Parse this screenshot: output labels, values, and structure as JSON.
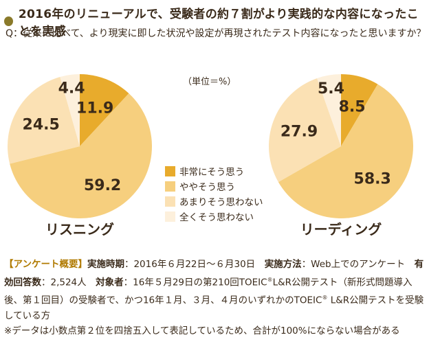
{
  "title": "2016年のリニューアルで、受験者の約７割がより実践的な内容になったことを実感",
  "question": "Q：従来に比べて、より現実に即した状況や設定が再現されたテスト内容になったと思いますか？",
  "unit": "（単位＝%）",
  "chart_data": [
    {
      "type": "pie",
      "title": "リスニング",
      "categories": [
        "非常にそう思う",
        "ややそう思う",
        "あまりそう思わない",
        "全くそう思わない"
      ],
      "values": [
        11.9,
        59.2,
        24.5,
        4.4
      ],
      "colors": [
        "#e8ab2c",
        "#f6cf7e",
        "#fbe1b4",
        "#fdf0dc"
      ],
      "legend": "center"
    },
    {
      "type": "pie",
      "title": "リーディング",
      "categories": [
        "非常にそう思う",
        "ややそう思う",
        "あまりそう思わない",
        "全くそう思わない"
      ],
      "values": [
        8.5,
        58.3,
        27.9,
        5.4
      ],
      "colors": [
        "#e8ab2c",
        "#f6cf7e",
        "#fbe1b4",
        "#fdf0dc"
      ],
      "legend": "center"
    }
  ],
  "legend": [
    {
      "label": "非常にそう思う",
      "color": "#e8ab2c"
    },
    {
      "label": "ややそう思う",
      "color": "#f6cf7e"
    },
    {
      "label": "あまりそう思わない",
      "color": "#fbe1b4"
    },
    {
      "label": "全くそう思わない",
      "color": "#fdf0dc"
    }
  ],
  "note": {
    "tag": "【アンケート概要】",
    "period_label": "実施時期",
    "period_value": "：2016年６月22日～６月30日",
    "method_label": "実施方法",
    "method_value": "：Web上でのアンケート",
    "count_label": "有効回答数",
    "count_value": "：2,524人",
    "target_label": "対象者",
    "target_value_1": "：16年５月29日の第210回TOEIC",
    "target_value_2": "L&R公開テスト（新形式問題導入後、第１回目）の受験者で、かつ16年１月、３月、４月のいずれかのTOEIC",
    "target_value_3": " L&R公開テストを受験している方",
    "reg_mark": "®",
    "disclaimer": "※データは小数点第２位を四捨五入して表記しているため、合計が100%にならない場合がある"
  }
}
